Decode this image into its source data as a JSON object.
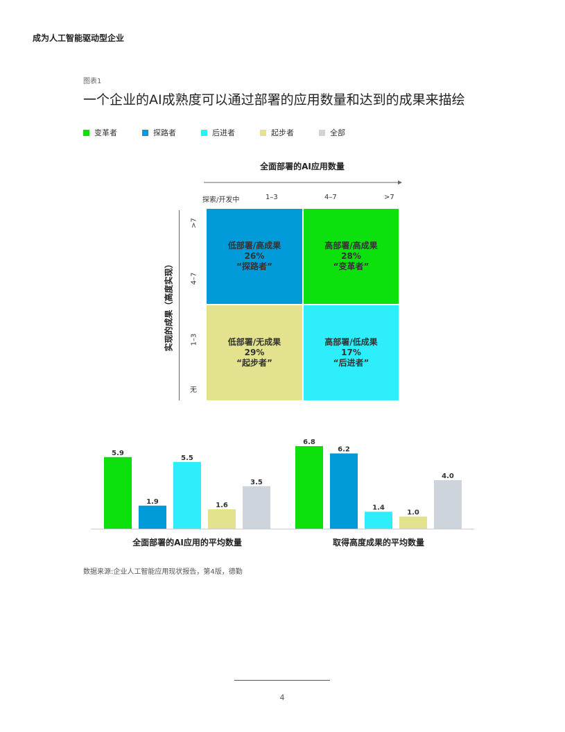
{
  "header": {
    "title": "成为人工智能驱动型企业"
  },
  "figure": {
    "label": "图表1",
    "title": "一个企业的AI成熟度可以通过部署的应用数量和达到的成果来描绘"
  },
  "legend": [
    {
      "label": "变革者",
      "color": "#0de10d"
    },
    {
      "label": "探路者",
      "color": "#009ad9"
    },
    {
      "label": "后进者",
      "color": "#2eeefc"
    },
    {
      "label": "起步者",
      "color": "#e2e28f"
    },
    {
      "label": "全部",
      "color": "#cdd4db"
    }
  ],
  "matrix": {
    "x_axis_title": "全面部署的AI应用数量",
    "x_ticks": [
      "探索/开发中",
      "1–3",
      "4–7",
      ">7"
    ],
    "y_axis_title": "实现的成果（高度实现）",
    "y_ticks": [
      ">7",
      "4–7",
      "1–3",
      "无"
    ],
    "quadrants": {
      "top_left": {
        "line1": "低部署/高成果",
        "percent": "26%",
        "name": "“探路者”",
        "color": "#009ad9"
      },
      "top_right": {
        "line1": "高部署/高成果",
        "percent": "28%",
        "name": "“变革者”",
        "color": "#0de10d"
      },
      "bottom_left": {
        "line1": "低部署/无成果",
        "percent": "29%",
        "name": "“起步者”",
        "color": "#e2e28f"
      },
      "bottom_right": {
        "line1": "高部署/低成果",
        "percent": "17%",
        "name": "“后进者”",
        "color": "#2eeefc"
      }
    }
  },
  "chart_data": {
    "type": "bar",
    "categories": [
      "全面部署的AI应用的平均数量",
      "取得高度成果的平均数量"
    ],
    "series": [
      {
        "name": "变革者",
        "values": [
          5.9,
          6.8
        ],
        "color": "#0de10d"
      },
      {
        "name": "探路者",
        "values": [
          1.9,
          6.2
        ],
        "color": "#009ad9"
      },
      {
        "name": "后进者",
        "values": [
          5.5,
          1.4
        ],
        "color": "#2eeefc"
      },
      {
        "name": "起步者",
        "values": [
          1.6,
          1.0
        ],
        "color": "#e2e28f"
      },
      {
        "name": "全部",
        "values": [
          3.5,
          4.0
        ],
        "color": "#cdd4db"
      }
    ],
    "ylim": [
      0,
      7
    ],
    "grid": false,
    "legend": "top-left"
  },
  "source": "数据来源:企业人工智能应用现状报告，第4版，德勤",
  "page_number": "4"
}
